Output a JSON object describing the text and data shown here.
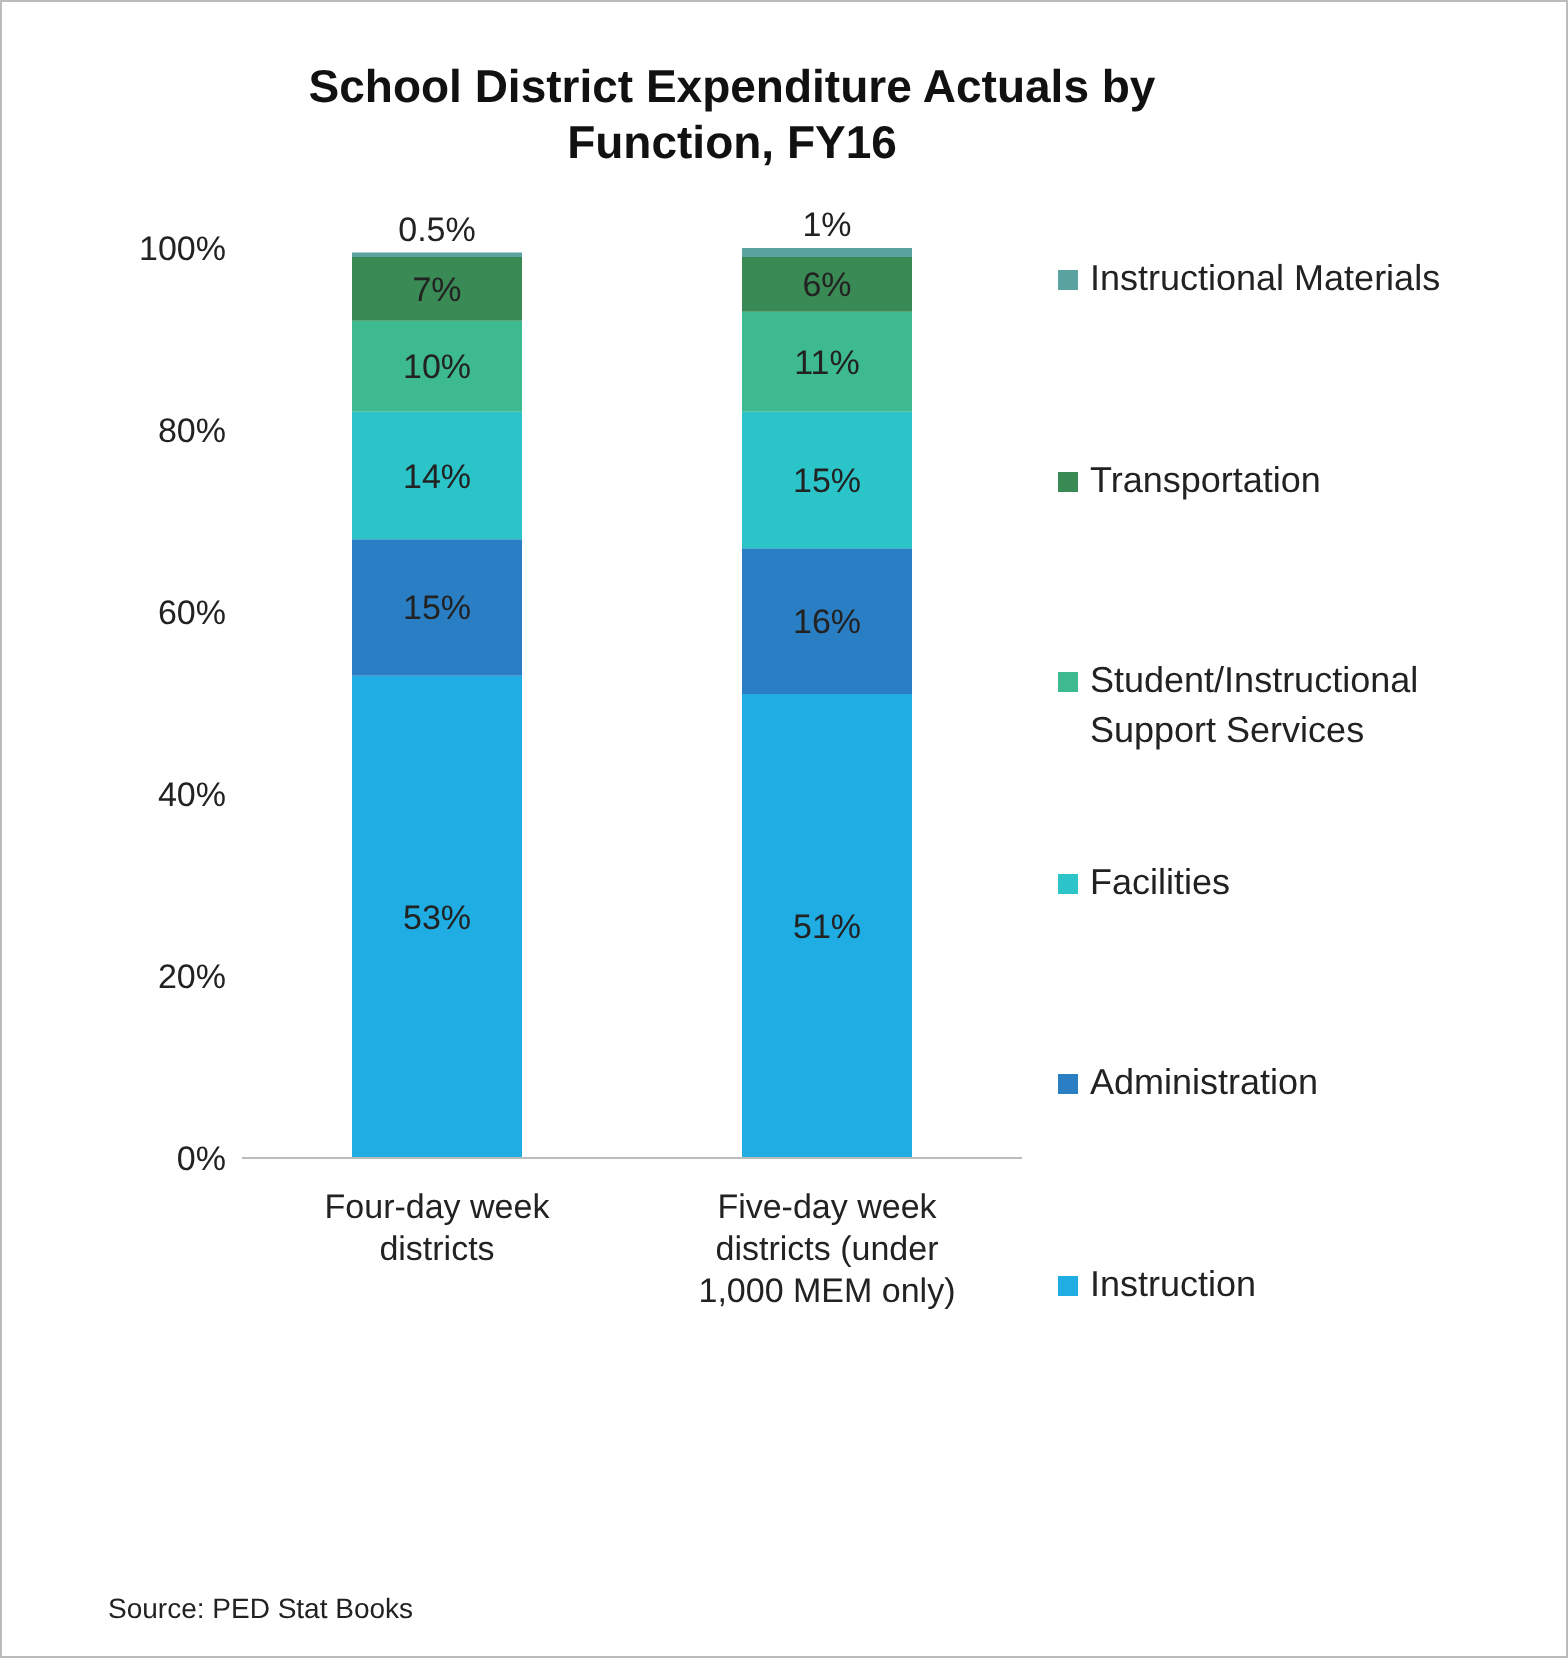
{
  "chart_data": {
    "type": "bar",
    "stacked": true,
    "title": "School District Expenditure Actuals by Function, FY16",
    "categories": [
      "Four-day week districts",
      "Five-day week districts (under 1,000 MEM only)"
    ],
    "series": [
      {
        "name": "Instruction",
        "color": "#1fade3",
        "values": [
          53,
          51
        ],
        "value_labels": [
          "53%",
          "51%"
        ]
      },
      {
        "name": "Administration",
        "color": "#2a7fc4",
        "values": [
          15,
          16
        ],
        "value_labels": [
          "15%",
          "16%"
        ]
      },
      {
        "name": "Facilities",
        "color": "#2bc4c8",
        "values": [
          14,
          15
        ],
        "value_labels": [
          "14%",
          "15%"
        ]
      },
      {
        "name": "Student/Instructional Support Services",
        "color": "#3dba8f",
        "values": [
          10,
          11
        ],
        "value_labels": [
          "10%",
          "11%"
        ]
      },
      {
        "name": "Transportation",
        "color": "#3a8a55",
        "values": [
          7,
          6
        ],
        "value_labels": [
          "7%",
          "6%"
        ]
      },
      {
        "name": "Instructional Materials",
        "color": "#5ba3a0",
        "values": [
          0.5,
          1
        ],
        "value_labels": [
          "0.5%",
          "1%"
        ]
      }
    ],
    "ylim": [
      0,
      100
    ],
    "yticks": [
      {
        "value": 0,
        "label": "0%"
      },
      {
        "value": 20,
        "label": "20%"
      },
      {
        "value": 40,
        "label": "40%"
      },
      {
        "value": 60,
        "label": "60%"
      },
      {
        "value": 80,
        "label": "80%"
      },
      {
        "value": 100,
        "label": "100%"
      }
    ],
    "grid": false,
    "legend": "right",
    "annotations": [
      "Source: PED Stat Books"
    ]
  }
}
